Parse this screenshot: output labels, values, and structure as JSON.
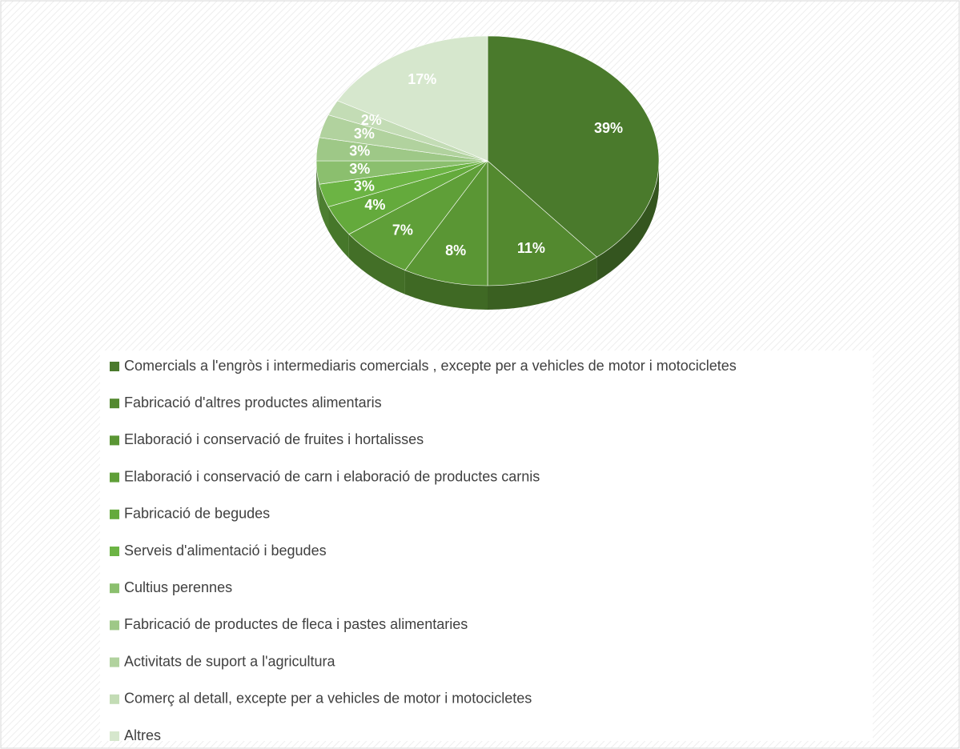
{
  "chart_data": {
    "type": "pie",
    "categories": [
      "Comercials a l'engròs i intermediaris comercials , excepte per a vehicles de motor i motocicletes",
      "Fabricació d'altres productes alimentaris",
      "Elaboració i conservació de fruites i hortalisses",
      "Elaboració i conservació de carn i elaboració de productes carnis",
      "Fabricació de begudes",
      "Serveis d'alimentació i begudes",
      "Cultius perennes",
      "Fabricació de productes de fleca i pastes alimentaries",
      "Activitats de suport a l'agricultura",
      "Comerç al detall, excepte per a vehicles de motor i motocicletes",
      "Altres"
    ],
    "values": [
      39,
      11,
      8,
      7,
      4,
      3,
      3,
      3,
      3,
      2,
      17
    ],
    "value_labels": [
      "39%",
      "11%",
      "8%",
      "7%",
      "4%",
      "3%",
      "3%",
      "3%",
      "3%",
      "2%",
      "17%"
    ],
    "colors": [
      "#4a7a2c",
      "#53892f",
      "#5a9634",
      "#5f9f38",
      "#64aa3c",
      "#6cb444",
      "#8bbf6e",
      "#9ec887",
      "#b1d29e",
      "#c3dcb5",
      "#d6e7cd"
    ],
    "legend": "bottom"
  }
}
